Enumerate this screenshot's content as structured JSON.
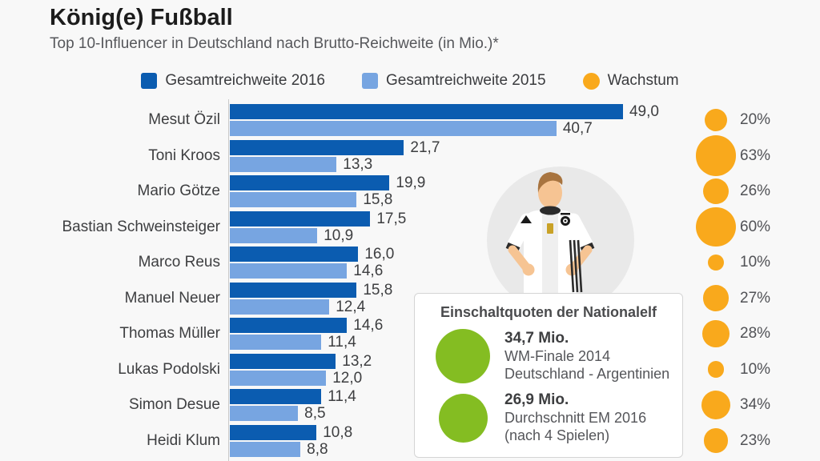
{
  "chart_data": {
    "type": "bar",
    "orientation": "horizontal",
    "title": "König(e) Fußball",
    "subtitle": "Top 10-Influencer in Deutschland nach Brutto-Reichweite (in Mio.)*",
    "unit": "Mio.",
    "xlim": [
      0,
      50
    ],
    "grid": false,
    "legend_position": "top",
    "categories": [
      "Mesut Özil",
      "Toni Kroos",
      "Mario Götze",
      "Bastian Schweinsteiger",
      "Marco Reus",
      "Manuel Neuer",
      "Thomas Müller",
      "Lukas Podolski",
      "Simon Desue",
      "Heidi Klum"
    ],
    "series": [
      {
        "name": "Gesamtreichweite 2016",
        "color": "#0b5cb0",
        "values": [
          49.0,
          21.7,
          19.9,
          17.5,
          16.0,
          15.8,
          14.6,
          13.2,
          11.4,
          10.8
        ],
        "value_labels": [
          "49,0",
          "21,7",
          "19,9",
          "17,5",
          "16,0",
          "15,8",
          "14,6",
          "13,2",
          "11,4",
          "10,8"
        ]
      },
      {
        "name": "Gesamtreichweite 2015",
        "color": "#77a5e1",
        "values": [
          40.7,
          13.3,
          15.8,
          10.9,
          14.6,
          12.4,
          11.4,
          12.0,
          8.5,
          8.8
        ],
        "value_labels": [
          "40,7",
          "13,3",
          "15,8",
          "10,9",
          "14,6",
          "12,4",
          "11,4",
          "12,0",
          "8,5",
          "8,8"
        ]
      }
    ],
    "growth_series": {
      "name": "Wachstum",
      "color": "#f9a91c",
      "values_percent": [
        20,
        63,
        26,
        60,
        10,
        27,
        28,
        10,
        34,
        23
      ],
      "labels": [
        "20%",
        "63%",
        "26%",
        "60%",
        "10%",
        "27%",
        "28%",
        "10%",
        "34%",
        "23%"
      ]
    }
  },
  "infobox": {
    "title": "Einschaltquoten der Nationalelf",
    "circle_color": "#84bd22",
    "items": [
      {
        "value": "34,7 Mio.",
        "lines": [
          "WM-Finale 2014",
          "Deutschland - Argentinien"
        ]
      },
      {
        "value": "26,9 Mio.",
        "lines": [
          "Durchschnitt EM 2016",
          "(nach 4 Spielen)"
        ]
      }
    ]
  },
  "illustration": {
    "name": "german-national-team-player"
  }
}
